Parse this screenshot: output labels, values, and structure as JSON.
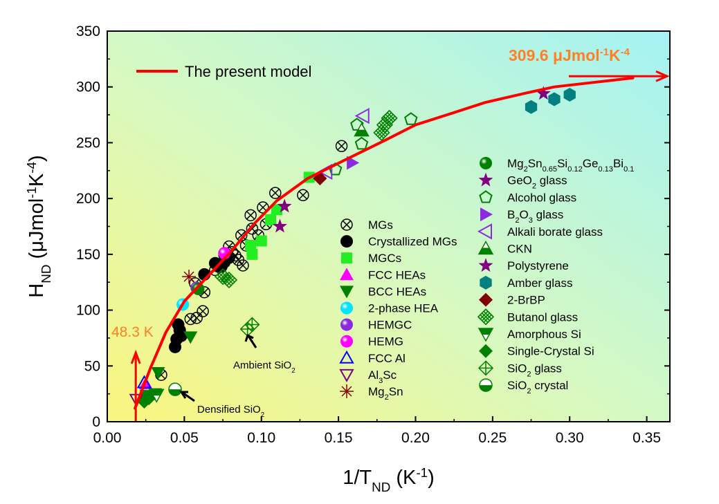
{
  "chart_data": {
    "type": "scatter",
    "xlabel": [
      {
        "t": "1/T"
      },
      {
        "t": "ND",
        "sub": true
      },
      {
        "t": " (K"
      },
      {
        "t": "-1",
        "sup": true
      },
      {
        "t": ")"
      }
    ],
    "ylabel": [
      {
        "t": "H"
      },
      {
        "t": "ND",
        "sub": true
      },
      {
        "t": " (μJmol"
      },
      {
        "t": "-1",
        "sup": true
      },
      {
        "t": "K"
      },
      {
        "t": "-4",
        "sup": true
      },
      {
        "t": ")"
      }
    ],
    "xlim": [
      0,
      0.365
    ],
    "ylim": [
      0,
      350
    ],
    "xticks": [
      "0.00",
      "0.05",
      "0.10",
      "0.15",
      "0.20",
      "0.25",
      "0.30",
      "0.35"
    ],
    "xtick_values": [
      0,
      0.05,
      0.1,
      0.15,
      0.2,
      0.25,
      0.3,
      0.35
    ],
    "yticks": [
      "0",
      "50",
      "100",
      "150",
      "200",
      "250",
      "300",
      "350"
    ],
    "ytick_values": [
      0,
      50,
      100,
      150,
      200,
      250,
      300,
      350
    ],
    "grid": false,
    "background": "gradient yellow (bottom-left) to cyan (top-right)",
    "model": {
      "name": "The present  model",
      "color": "#ff0000",
      "x": [
        0.018,
        0.028,
        0.038,
        0.05,
        0.065,
        0.08,
        0.095,
        0.11,
        0.13,
        0.155,
        0.18,
        0.2,
        0.225,
        0.245,
        0.27,
        0.29,
        0.315,
        0.341
      ],
      "y": [
        12,
        48,
        80,
        108,
        130,
        152,
        177,
        198,
        218,
        235,
        252,
        266,
        277,
        286,
        294,
        300,
        304,
        308
      ]
    },
    "annotations": [
      {
        "id": "asymptote",
        "text": [
          {
            "t": "309.6 μJmol"
          },
          {
            "t": "-1",
            "sup": true
          },
          {
            "t": "K"
          },
          {
            "t": "-4",
            "sup": true
          }
        ],
        "value": 309.6,
        "color": "#ff7f27"
      },
      {
        "id": "tnd",
        "text": [
          {
            "t": "48.3 K"
          }
        ],
        "x": 0.0185,
        "color": "#ff7f27"
      },
      {
        "id": "ambient",
        "text": [
          {
            "t": "Ambient SiO"
          },
          {
            "t": "2",
            "sub": true
          }
        ]
      },
      {
        "id": "densified",
        "text": [
          {
            "t": "Densified SiO"
          },
          {
            "t": "2",
            "sub": true
          }
        ]
      }
    ],
    "series": [
      {
        "name": [
          {
            "t": "MGs"
          }
        ],
        "marker": "circle-x",
        "color": "#000000",
        "legend": "left",
        "x": [
          0.152,
          0.127,
          0.109,
          0.101,
          0.093,
          0.098,
          0.087,
          0.079,
          0.076,
          0.07,
          0.063,
          0.062,
          0.058,
          0.054,
          0.035,
          0.057,
          0.083,
          0.09,
          0.094,
          0.103,
          0.072,
          0.085,
          0.088,
          0.081
        ],
        "y": [
          247,
          203,
          205,
          192,
          185,
          167,
          167,
          157,
          149,
          136,
          116,
          99,
          93,
          92,
          42,
          124,
          149,
          158,
          173,
          177,
          139,
          145,
          140,
          152
        ]
      },
      {
        "name": [
          {
            "t": "Crystallized MGs"
          }
        ],
        "marker": "circle",
        "color": "#000000",
        "legend": "left",
        "x": [
          0.046,
          0.045,
          0.044,
          0.048,
          0.063,
          0.074,
          0.079,
          0.07,
          0.047,
          0.076
        ],
        "y": [
          87,
          74,
          67,
          77,
          132,
          139,
          147,
          142,
          82,
          143
        ]
      },
      {
        "name": [
          {
            "t": "MGCs"
          }
        ],
        "marker": "square",
        "color": "#22ee22",
        "legend": "left",
        "x": [
          0.093,
          0.094,
          0.1,
          0.106,
          0.11,
          0.131
        ],
        "y": [
          158,
          150,
          162,
          181,
          190,
          219
        ]
      },
      {
        "name": [
          {
            "t": "FCC HEAs"
          }
        ],
        "marker": "triangle-up",
        "color": "#ff00ff",
        "legend": "left",
        "x": [
          0.025
        ],
        "y": [
          34
        ]
      },
      {
        "name": [
          {
            "t": "BCC HEAs"
          }
        ],
        "marker": "triangle-down",
        "color": "#008000",
        "legend": "left",
        "x": [
          0.054,
          0.033,
          0.031
        ],
        "y": [
          76,
          44,
          25
        ]
      },
      {
        "name": [
          {
            "t": "2-phase HEA"
          }
        ],
        "marker": "sphere",
        "color": "#00e5ff",
        "legend": "left",
        "x": [
          0.049
        ],
        "y": [
          105
        ]
      },
      {
        "name": [
          {
            "t": "HEMGC"
          }
        ],
        "marker": "sphere",
        "color": "#8a2be2",
        "legend": "left",
        "x": [
          0.058
        ],
        "y": [
          120
        ]
      },
      {
        "name": [
          {
            "t": "HEMG"
          }
        ],
        "marker": "sphere",
        "color": "#ff00ff",
        "legend": "left",
        "x": [
          0.076
        ],
        "y": [
          151
        ]
      },
      {
        "name": [
          {
            "t": "FCC Al"
          }
        ],
        "marker": "triangle-up-open",
        "color": "#0000ff",
        "legend": "left",
        "x": [
          0.024
        ],
        "y": [
          35
        ]
      },
      {
        "name": [
          {
            "t": "Al"
          },
          {
            "t": "3",
            "sub": true
          },
          {
            "t": "Sc"
          }
        ],
        "marker": "triangle-down-open",
        "color": "#800080",
        "legend": "left",
        "x": [
          0.019
        ],
        "y": [
          20
        ]
      },
      {
        "name": [
          {
            "t": "Mg"
          },
          {
            "t": "2",
            "sub": true
          },
          {
            "t": "Sn"
          }
        ],
        "marker": "asterisk",
        "color": "#8b0000",
        "legend": "left",
        "x": [
          0.053
        ],
        "y": [
          130
        ]
      },
      {
        "name": [
          {
            "t": "Mg"
          },
          {
            "t": "2",
            "sub": true
          },
          {
            "t": "Sn"
          },
          {
            "t": "0.65",
            "sub": true
          },
          {
            "t": "Si"
          },
          {
            "t": "0.12",
            "sub": true
          },
          {
            "t": "Ge"
          },
          {
            "t": "0.13",
            "sub": true
          },
          {
            "t": "Bi"
          },
          {
            "t": "0.1",
            "sub": true
          }
        ],
        "marker": "sphere",
        "color": "#008000",
        "legend": "right",
        "x": [
          0.059
        ],
        "y": [
          119
        ]
      },
      {
        "name": [
          {
            "t": "GeO"
          },
          {
            "t": "2",
            "sub": true
          },
          {
            "t": " glass"
          }
        ],
        "marker": "star",
        "color": "#800080",
        "legend": "right",
        "x": [
          0.115,
          0.112
        ],
        "y": [
          193,
          175
        ]
      },
      {
        "name": [
          {
            "t": "Alcohol glass"
          }
        ],
        "marker": "pentagon-open",
        "color": "#008000",
        "legend": "right",
        "x": [
          0.162,
          0.165,
          0.197,
          0.148
        ],
        "y": [
          266,
          249,
          271,
          226
        ]
      },
      {
        "name": [
          {
            "t": "B"
          },
          {
            "t": "2",
            "sub": true
          },
          {
            "t": "O"
          },
          {
            "t": "3",
            "sub": true
          },
          {
            "t": " glass"
          }
        ],
        "marker": "triangle-right",
        "color": "#8a2be2",
        "legend": "right",
        "x": [
          0.159
        ],
        "y": [
          232
        ]
      },
      {
        "name": [
          {
            "t": "Alkali borate glass"
          }
        ],
        "marker": "triangle-left-open",
        "color": "#8a2be2",
        "legend": "right",
        "x": [
          0.166,
          0.142
        ],
        "y": [
          274,
          224
        ]
      },
      {
        "name": [
          {
            "t": "CKN"
          }
        ],
        "marker": "triangle-up-half",
        "color": "#008000",
        "legend": "right",
        "x": [
          0.165
        ],
        "y": [
          261
        ]
      },
      {
        "name": [
          {
            "t": "Polystyrene"
          }
        ],
        "marker": "star",
        "color": "#800080",
        "legend": "right",
        "x": [
          0.283
        ],
        "y": [
          294
        ]
      },
      {
        "name": [
          {
            "t": "Amber glass"
          }
        ],
        "marker": "hexagon",
        "color": "#008080",
        "legend": "right",
        "x": [
          0.275,
          0.29,
          0.3
        ],
        "y": [
          282,
          289,
          293
        ]
      },
      {
        "name": [
          {
            "t": "2-BrBP"
          }
        ],
        "marker": "diamond",
        "color": "#800000",
        "legend": "right",
        "x": [
          0.138
        ],
        "y": [
          218
        ]
      },
      {
        "name": [
          {
            "t": "Butanol glass"
          }
        ],
        "marker": "diamond-hatch",
        "color": "#008000",
        "legend": "right",
        "x": [
          0.18,
          0.183,
          0.178,
          0.079,
          0.075
        ],
        "y": [
          266,
          272,
          259,
          127,
          130
        ]
      },
      {
        "name": [
          {
            "t": "Amorphous Si"
          }
        ],
        "marker": "triangle-down-half",
        "color": "#008000",
        "legend": "right",
        "x": [
          0.032,
          0.026
        ],
        "y": [
          24,
          23
        ]
      },
      {
        "name": [
          {
            "t": "Single-Crystal Si"
          }
        ],
        "marker": "diamond",
        "color": "#008000",
        "legend": "right",
        "x": [
          0.024,
          0.027
        ],
        "y": [
          18,
          21
        ]
      },
      {
        "name": [
          {
            "t": "SiO"
          },
          {
            "t": "2",
            "sub": true
          },
          {
            "t": " glass"
          }
        ],
        "marker": "diamond-cross",
        "color": "#008000",
        "legend": "right",
        "x": [
          0.091,
          0.094
        ],
        "y": [
          83,
          87
        ]
      },
      {
        "name": [
          {
            "t": "SiO"
          },
          {
            "t": "2",
            "sub": true
          },
          {
            "t": " crystal"
          }
        ],
        "marker": "circle-half",
        "color": "#008000",
        "legend": "right",
        "x": [
          0.044
        ],
        "y": [
          29
        ]
      }
    ]
  }
}
